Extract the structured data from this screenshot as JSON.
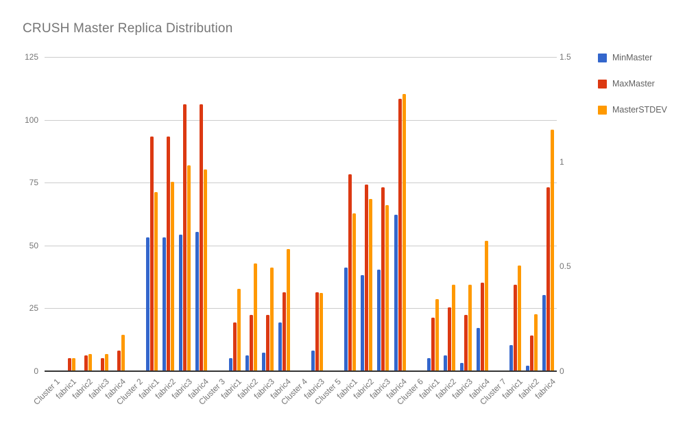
{
  "title": "CRUSH Master Replica Distribution",
  "chart_data": {
    "type": "bar",
    "title": "CRUSH Master Replica Distribution",
    "categories": [
      "Cluster 1",
      "fabric1",
      "fabric2",
      "fabric3",
      "fabric4",
      "Cluster 2",
      "fabric1",
      "fabric2",
      "fabric3",
      "fabric4",
      "Cluster 3",
      "fabric1",
      "fabric2",
      "fabric3",
      "fabric4",
      "Cluster 4",
      "fabric3",
      "Cluster 5",
      "fabric1",
      "fabric2",
      "fabric3",
      "fabric4",
      "Cluster 6",
      "fabric1",
      "fabric2",
      "fabric3",
      "fabric4",
      "Cluster 7",
      "fabric1",
      "fabric2",
      "fabric4"
    ],
    "series": [
      {
        "name": "MinMaster",
        "color": "#3366CC",
        "axis": "left",
        "values": [
          0,
          0,
          0,
          0,
          0,
          0,
          53,
          53,
          54,
          55,
          0,
          5,
          6,
          7,
          19,
          0,
          8,
          0,
          41,
          38,
          40,
          62,
          0,
          5,
          6,
          3,
          17,
          0,
          10,
          2,
          30
        ]
      },
      {
        "name": "MaxMaster",
        "color": "#DC3912",
        "axis": "left",
        "values": [
          0,
          5,
          6,
          5,
          8,
          0,
          93,
          93,
          106,
          106,
          0,
          19,
          22,
          22,
          31,
          0,
          31,
          0,
          78,
          74,
          73,
          108,
          0,
          21,
          25,
          22,
          35,
          0,
          34,
          14,
          73
        ]
      },
      {
        "name": "MasterSTDEV",
        "color": "#FF9900",
        "axis": "right",
        "values": [
          0,
          0.06,
          0.08,
          0.08,
          0.17,
          0,
          0.85,
          0.9,
          0.98,
          0.96,
          0,
          0.39,
          0.51,
          0.49,
          0.58,
          0,
          0.37,
          0,
          0.75,
          0.82,
          0.79,
          1.32,
          0,
          0.34,
          0.41,
          0.41,
          0.62,
          0,
          0.5,
          0.27,
          1.15
        ]
      }
    ],
    "left_axis": {
      "ticks": [
        0,
        25,
        50,
        75,
        100,
        125
      ],
      "max": 125
    },
    "right_axis": {
      "ticks": [
        0,
        0.5,
        1,
        1.5
      ],
      "max": 1.5
    },
    "legend_position": "right",
    "grid": true,
    "colors": {
      "grid": "#cccccc",
      "baseline": "#333333",
      "text": "#757575",
      "background": "#ffffff"
    }
  }
}
